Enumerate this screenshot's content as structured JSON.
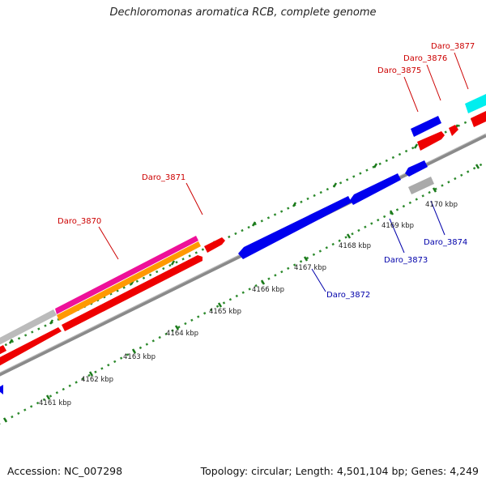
{
  "title": "Dechloromonas aromatica RCB, complete genome",
  "footer": {
    "accession": "Accession: NC_007298",
    "topology": "Topology: circular; Length: 4,501,104 bp; Genes: 4,249"
  },
  "colors": {
    "forward_gene": "#ff0000",
    "reverse_gene": "#0000ee",
    "forward_label": "#cc0000",
    "reverse_label": "#0000aa",
    "tick": "#006600",
    "backbone": "#888888"
  },
  "kbp_ticks": [
    "4161 kbp",
    "4162 kbp",
    "4163 kbp",
    "4164 kbp",
    "4165 kbp",
    "4166 kbp",
    "4167 kbp",
    "4168 kbp",
    "4169 kbp",
    "4170 kbp"
  ],
  "gene_labels": [
    {
      "text": "Daro_3870",
      "strand": "forward"
    },
    {
      "text": "Daro_3871",
      "strand": "forward"
    },
    {
      "text": "Daro_3872",
      "strand": "reverse"
    },
    {
      "text": "Daro_3873",
      "strand": "reverse"
    },
    {
      "text": "Daro_3874",
      "strand": "reverse"
    },
    {
      "text": "Daro_3875",
      "strand": "forward"
    },
    {
      "text": "Daro_3876",
      "strand": "forward"
    },
    {
      "text": "Daro_3877",
      "strand": "forward"
    }
  ]
}
